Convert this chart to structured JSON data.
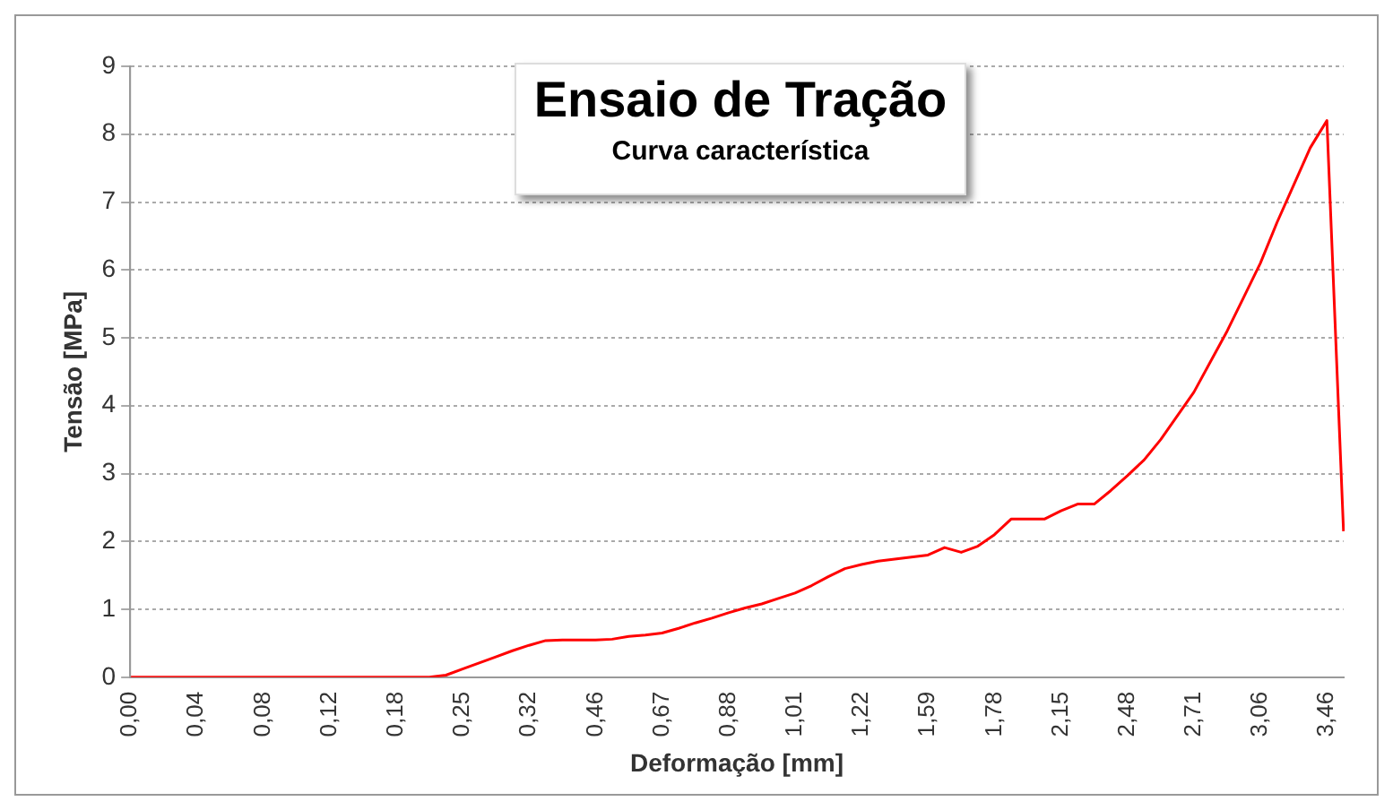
{
  "chart_data": {
    "type": "line",
    "title": "Ensaio de Tração",
    "subtitle": "Curva característica",
    "xlabel": "Deformação [mm]",
    "ylabel": "Tensão [MPa]",
    "categories": [
      "0,00",
      null,
      null,
      null,
      "0,04",
      null,
      null,
      null,
      "0,08",
      null,
      null,
      null,
      "0,12",
      null,
      null,
      null,
      "0,18",
      null,
      null,
      null,
      "0,25",
      null,
      null,
      null,
      "0,32",
      null,
      null,
      null,
      "0,46",
      null,
      null,
      null,
      "0,67",
      null,
      null,
      null,
      "0,88",
      null,
      null,
      null,
      "1,01",
      null,
      null,
      null,
      "1,22",
      null,
      null,
      null,
      "1,59",
      null,
      null,
      null,
      "1,78",
      null,
      null,
      null,
      "2,15",
      null,
      null,
      null,
      "2,48",
      null,
      null,
      null,
      "2,71",
      null,
      null,
      null,
      "3,06",
      null,
      null,
      null,
      "3,46",
      null
    ],
    "series": [
      {
        "color": "#ff0000",
        "values": [
          0,
          0,
          0,
          0,
          0,
          0,
          0,
          0,
          0,
          0,
          0,
          0,
          0,
          0,
          0,
          0,
          0,
          0,
          0,
          0.03,
          0.12,
          0.21,
          0.3,
          0.39,
          0.47,
          0.54,
          0.55,
          0.55,
          0.55,
          0.56,
          0.6,
          0.62,
          0.65,
          0.72,
          0.8,
          0.87,
          0.95,
          1.02,
          1.08,
          1.16,
          1.24,
          1.35,
          1.48,
          1.6,
          1.66,
          1.71,
          1.74,
          1.77,
          1.8,
          1.91,
          1.84,
          1.93,
          2.1,
          2.33,
          2.33,
          2.33,
          2.45,
          2.55,
          2.55,
          2.75,
          2.97,
          3.2,
          3.5,
          3.85,
          4.2,
          4.65,
          5.1,
          5.6,
          6.1,
          6.7,
          7.25,
          7.8,
          8.2,
          2.15
        ]
      }
    ],
    "ylim": [
      0,
      9
    ],
    "yticks": [
      0,
      1,
      2,
      3,
      4,
      5,
      6,
      7,
      8,
      9
    ],
    "grid": "y",
    "legend": false,
    "marker": "none",
    "line_style": "solid"
  }
}
